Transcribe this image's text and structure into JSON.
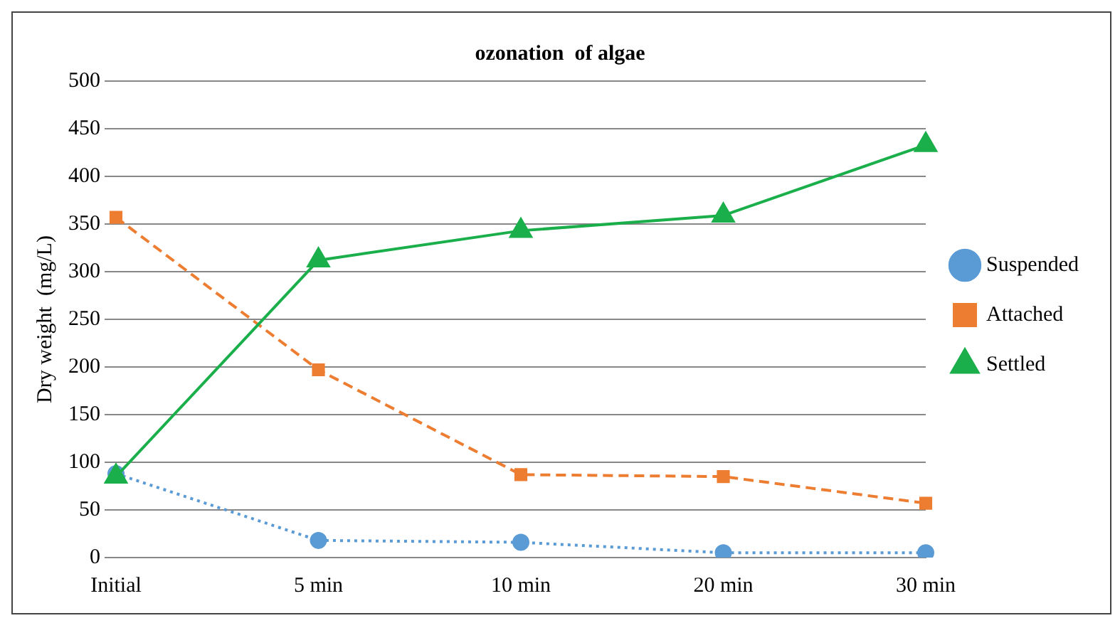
{
  "chart_data": {
    "type": "line",
    "title": "ozonation  of algae",
    "ylabel": "Dry weight  (mg/L)",
    "categories": [
      "Initial",
      "5 min",
      "10 min",
      "20 min",
      "30 min"
    ],
    "series": [
      {
        "name": "Suspended",
        "color": "#5b9bd5",
        "marker": "circle",
        "line_style": "dotted",
        "values": [
          88,
          18,
          16,
          5,
          5
        ]
      },
      {
        "name": "Attached",
        "color": "#ed7d31",
        "marker": "square",
        "line_style": "dashed",
        "values": [
          357,
          197,
          87,
          85,
          57
        ]
      },
      {
        "name": "Settled",
        "color": "#1aaf4b",
        "marker": "triangle",
        "line_style": "solid",
        "values": [
          85,
          312,
          343,
          359,
          433
        ]
      }
    ],
    "ylim": [
      0,
      500
    ],
    "yticks": [
      0,
      50,
      100,
      150,
      200,
      250,
      300,
      350,
      400,
      450,
      500
    ],
    "grid": "y",
    "legend": "right"
  }
}
